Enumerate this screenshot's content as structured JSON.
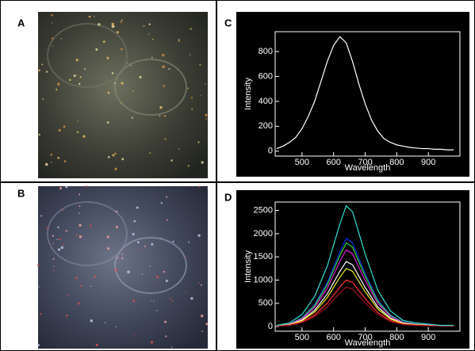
{
  "panel_labels": [
    "A",
    "B",
    "C",
    "D"
  ],
  "chart_data": [
    {
      "type": "line",
      "xlabel": "Wavelength",
      "ylabel": "Intensity",
      "x": [
        420,
        440,
        460,
        480,
        500,
        520,
        540,
        560,
        580,
        600,
        620,
        640,
        660,
        680,
        700,
        720,
        740,
        760,
        780,
        800,
        820,
        840,
        860,
        880,
        900,
        920,
        940,
        960,
        980
      ],
      "xlim": [
        415,
        1000
      ],
      "ylim": [
        -40,
        960
      ],
      "xticks": [
        500,
        600,
        700,
        800,
        900
      ],
      "yticks": [
        0,
        200,
        400,
        600,
        800
      ],
      "series": [
        {
          "color": "#ffffff",
          "values": [
            20,
            40,
            70,
            110,
            180,
            280,
            400,
            560,
            720,
            850,
            920,
            870,
            720,
            540,
            380,
            250,
            160,
            100,
            70,
            50,
            40,
            30,
            25,
            20,
            20,
            15,
            15,
            10,
            10
          ]
        }
      ]
    },
    {
      "type": "line",
      "xlabel": "Wavelength",
      "ylabel": "Intensity",
      "x": [
        420,
        460,
        500,
        540,
        580,
        620,
        640,
        660,
        700,
        740,
        780,
        820,
        860,
        900,
        940,
        980
      ],
      "xlim": [
        415,
        1000
      ],
      "ylim": [
        -100,
        2680
      ],
      "xticks": [
        500,
        600,
        700,
        800,
        900
      ],
      "yticks": [
        0,
        500,
        1000,
        1500,
        2000,
        2500
      ],
      "series": [
        {
          "color": "#1030e0",
          "values": [
            19,
            57,
            190,
            475,
            950,
            1615,
            1900,
            1805,
            1140,
            570,
            247,
            95,
            57,
            38,
            19,
            19
          ]
        },
        {
          "color": "#30e040",
          "values": [
            18,
            54,
            180,
            450,
            900,
            1530,
            1800,
            1710,
            1080,
            540,
            234,
            90,
            54,
            36,
            18,
            18
          ]
        },
        {
          "color": "#e020e0",
          "values": [
            17,
            50,
            165,
            413,
            825,
            1403,
            1650,
            1568,
            990,
            495,
            215,
            83,
            50,
            33,
            17,
            17
          ]
        },
        {
          "color": "#ffffff",
          "values": [
            14,
            42,
            140,
            350,
            700,
            1190,
            1400,
            1330,
            840,
            420,
            182,
            70,
            42,
            28,
            14,
            14
          ]
        },
        {
          "color": "#f0f020",
          "values": [
            13,
            38,
            125,
            313,
            625,
            1063,
            1250,
            1188,
            750,
            375,
            163,
            63,
            38,
            25,
            13,
            13
          ]
        },
        {
          "color": "#ff3030",
          "values": [
            10,
            30,
            100,
            250,
            500,
            850,
            1000,
            950,
            600,
            300,
            130,
            50,
            30,
            20,
            10,
            10
          ]
        },
        {
          "color": "#a01020",
          "values": [
            9,
            26,
            85,
            213,
            425,
            723,
            850,
            808,
            510,
            255,
            111,
            43,
            26,
            17,
            9,
            9
          ]
        },
        {
          "color": "#30e0d0",
          "values": [
            26,
            78,
            260,
            650,
            1300,
            2210,
            2600,
            2470,
            1560,
            780,
            338,
            130,
            78,
            52,
            26,
            26
          ]
        }
      ]
    }
  ]
}
